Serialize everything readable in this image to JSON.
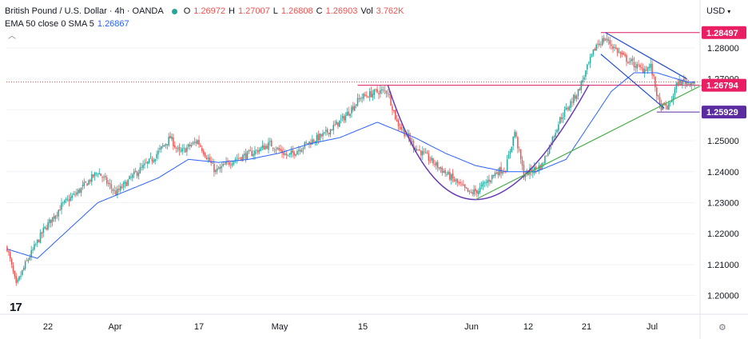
{
  "header": {
    "instrument": "British Pound / U.S. Dollar · 4h · OANDA",
    "ohlc": [
      {
        "k": "O",
        "v": "1.26972"
      },
      {
        "k": "H",
        "v": "1.27007"
      },
      {
        "k": "L",
        "v": "1.26808"
      },
      {
        "k": "C",
        "v": "1.26903"
      },
      {
        "k": "Vol",
        "v": "3.762K"
      }
    ],
    "indicator_label": "EMA 50 close 0 SMA 5",
    "indicator_value": "1.26867",
    "currency": "USD",
    "collapse_icon": "chevron-up-icon"
  },
  "logo_text": "17",
  "colors": {
    "up": "#26a69a",
    "down": "#ef5350",
    "ema": "#2962ff",
    "cup": "#673ab7",
    "wedge": "#1e4bd1",
    "trend": "#4caf50",
    "resistance_line": "#d81b60",
    "badge_red": "#e91e63",
    "badge_purple": "#5b2c9f"
  },
  "chart_data": {
    "type": "candlestick",
    "timeframe": "4h",
    "y_axis_ticks": [
      "1.28000",
      "1.27000",
      "1.26000",
      "1.25000",
      "1.24000",
      "1.23000",
      "1.22000",
      "1.21000",
      "1.20000"
    ],
    "ylim": [
      1.1945,
      1.292
    ],
    "x_axis_labels": [
      "22",
      "Apr",
      "17",
      "May",
      "15",
      "Jun",
      "12",
      "21",
      "Jul"
    ],
    "price_labels": [
      {
        "text": "1.28497",
        "value": 1.28497,
        "style": "red"
      },
      {
        "text": "1.26794",
        "value": 1.26794,
        "style": "red"
      },
      {
        "text": "1.25929",
        "value": 1.25929,
        "style": "purple"
      }
    ],
    "current_price": 1.26903,
    "candles_per_day": 6,
    "candles_per_day_note": "4h bars; x positions derived from candle index",
    "close_anchors": [
      [
        0,
        1.2155
      ],
      [
        6,
        1.203
      ],
      [
        12,
        1.21
      ],
      [
        24,
        1.221
      ],
      [
        36,
        1.229
      ],
      [
        48,
        1.234
      ],
      [
        60,
        1.24
      ],
      [
        72,
        1.233
      ],
      [
        84,
        1.239
      ],
      [
        96,
        1.244
      ],
      [
        108,
        1.251
      ],
      [
        114,
        1.246
      ],
      [
        126,
        1.25
      ],
      [
        138,
        1.24
      ],
      [
        150,
        1.244
      ],
      [
        162,
        1.246
      ],
      [
        174,
        1.249
      ],
      [
        186,
        1.245
      ],
      [
        198,
        1.249
      ],
      [
        210,
        1.252
      ],
      [
        222,
        1.257
      ],
      [
        234,
        1.264
      ],
      [
        246,
        1.266
      ],
      [
        252,
        1.266
      ],
      [
        258,
        1.256
      ],
      [
        270,
        1.248
      ],
      [
        282,
        1.243
      ],
      [
        294,
        1.238
      ],
      [
        306,
        1.233
      ],
      [
        312,
        1.234
      ],
      [
        324,
        1.24
      ],
      [
        330,
        1.241
      ],
      [
        336,
        1.253
      ],
      [
        342,
        1.239
      ],
      [
        354,
        1.242
      ],
      [
        366,
        1.257
      ],
      [
        378,
        1.266
      ],
      [
        390,
        1.281
      ],
      [
        396,
        1.283
      ],
      [
        408,
        1.277
      ],
      [
        420,
        1.273
      ],
      [
        426,
        1.274
      ],
      [
        432,
        1.261
      ],
      [
        438,
        1.261
      ],
      [
        444,
        1.269
      ],
      [
        450,
        1.269
      ]
    ],
    "ema50_anchors": [
      [
        0,
        1.215
      ],
      [
        20,
        1.212
      ],
      [
        40,
        1.221
      ],
      [
        60,
        1.23
      ],
      [
        80,
        1.234
      ],
      [
        100,
        1.238
      ],
      [
        120,
        1.244
      ],
      [
        140,
        1.243
      ],
      [
        160,
        1.244
      ],
      [
        180,
        1.246
      ],
      [
        200,
        1.249
      ],
      [
        220,
        1.251
      ],
      [
        245,
        1.256
      ],
      [
        270,
        1.251
      ],
      [
        290,
        1.246
      ],
      [
        310,
        1.242
      ],
      [
        330,
        1.24
      ],
      [
        350,
        1.24
      ],
      [
        370,
        1.244
      ],
      [
        385,
        1.255
      ],
      [
        400,
        1.266
      ],
      [
        415,
        1.272
      ],
      [
        430,
        1.272
      ],
      [
        450,
        1.269
      ]
    ],
    "cup_curve": {
      "start": [
        252,
        1.268
      ],
      "bottom": [
        310,
        1.231
      ],
      "end": [
        385,
        1.268
      ]
    },
    "wedge_upper": {
      "start": [
        396,
        1.285
      ],
      "end": [
        450,
        1.27
      ]
    },
    "wedge_lower": {
      "start": [
        393,
        1.278
      ],
      "end": [
        435,
        1.2605
      ]
    },
    "trend_line": {
      "start": [
        310,
        1.231
      ],
      "end": [
        460,
        1.268
      ]
    },
    "resistance_line": {
      "value": 1.26794,
      "start_index": 232
    },
    "top_line": {
      "value": 1.28497,
      "start_index": 393
    },
    "support_line": {
      "value": 1.25929,
      "start_index": 430
    },
    "current_price_line": {
      "value": 1.26903
    }
  }
}
